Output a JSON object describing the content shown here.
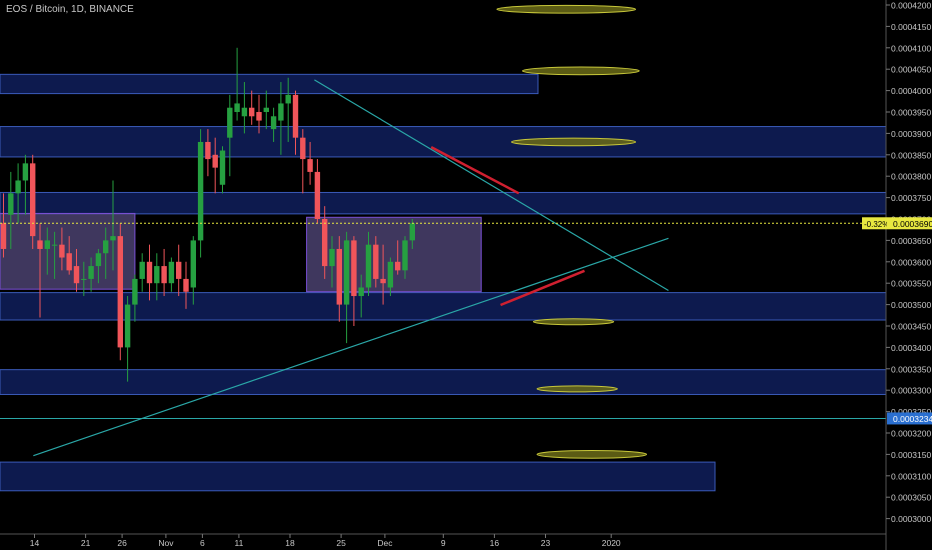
{
  "header": {
    "symbol": "EOS / Bitcoin, 1D, BINANCE"
  },
  "colors": {
    "background": "#000000",
    "up": "#26a041",
    "down": "#f0555a",
    "zone_fill": "#0f1f5c",
    "zone_stroke": "#3a5ab8",
    "range_fill": "#5a4f86",
    "range_stroke": "#7a4fd6",
    "ellipse_fill": "#6b6b18",
    "ellipse_stroke": "#c8c83a",
    "trendline": "#2aa7a7",
    "marker": "#d02030",
    "price_line": "#e8e840",
    "axis_text": "#c8c8c8"
  },
  "chart_data": {
    "type": "candlestick",
    "title": "EOS / Bitcoin, 1D, BINANCE",
    "y_axis": {
      "position": "right",
      "range": [
        0.000297,
        0.000421
      ],
      "ticks": [
        "0.0004200",
        "0.0004150",
        "0.0004100",
        "0.0004050",
        "0.0004000",
        "0.0003950",
        "0.0003900",
        "0.0003850",
        "0.0003800",
        "0.0003750",
        "0.0003700",
        "0.0003650",
        "0.0003600",
        "0.0003550",
        "0.0003500",
        "0.0003450",
        "0.0003400",
        "0.0003350",
        "0.0003300",
        "0.0003250",
        "0.0003200",
        "0.0003150",
        "0.0003100",
        "0.0003050",
        "0.0003000"
      ]
    },
    "x_axis": {
      "ticks": [
        {
          "label": "14",
          "day": 0
        },
        {
          "label": "21",
          "day": 7
        },
        {
          "label": "26",
          "day": 12
        },
        {
          "label": "Nov",
          "day": 18
        },
        {
          "label": "6",
          "day": 23
        },
        {
          "label": "11",
          "day": 28
        },
        {
          "label": "18",
          "day": 35
        },
        {
          "label": "25",
          "day": 42
        },
        {
          "label": "Dec",
          "day": 48
        },
        {
          "label": "9",
          "day": 56
        },
        {
          "label": "16",
          "day": 63
        },
        {
          "label": "23",
          "day": 70
        },
        {
          "label": "2020",
          "day": 79
        }
      ]
    },
    "candles": [
      {
        "o": 0.000369,
        "h": 0.000376,
        "l": 0.000361,
        "c": 0.000363
      },
      {
        "o": 0.000371,
        "h": 0.000381,
        "l": 0.000363,
        "c": 0.000376
      },
      {
        "o": 0.000376,
        "h": 0.000383,
        "l": 0.000369,
        "c": 0.000379
      },
      {
        "o": 0.000379,
        "h": 0.000385,
        "l": 0.000371,
        "c": 0.000383
      },
      {
        "o": 0.000383,
        "h": 0.000385,
        "l": 0.000363,
        "c": 0.000366
      },
      {
        "o": 0.000365,
        "h": 0.000369,
        "l": 0.000347,
        "c": 0.000363
      },
      {
        "o": 0.000363,
        "h": 0.000368,
        "l": 0.000357,
        "c": 0.000365
      },
      {
        "o": 0.000364,
        "h": 0.000367,
        "l": 0.000356,
        "c": 0.000364
      },
      {
        "o": 0.000364,
        "h": 0.000368,
        "l": 0.000358,
        "c": 0.000361
      },
      {
        "o": 0.000362,
        "h": 0.000366,
        "l": 0.000357,
        "c": 0.000358
      },
      {
        "o": 0.000359,
        "h": 0.000363,
        "l": 0.000353,
        "c": 0.000355
      },
      {
        "o": 0.000356,
        "h": 0.00036,
        "l": 0.000352,
        "c": 0.000356
      },
      {
        "o": 0.000356,
        "h": 0.000361,
        "l": 0.000353,
        "c": 0.000359
      },
      {
        "o": 0.000359,
        "h": 0.000363,
        "l": 0.000355,
        "c": 0.000362
      },
      {
        "o": 0.000362,
        "h": 0.000368,
        "l": 0.000356,
        "c": 0.000365
      },
      {
        "o": 0.000365,
        "h": 0.000379,
        "l": 0.000358,
        "c": 0.000366
      },
      {
        "o": 0.000366,
        "h": 0.000369,
        "l": 0.000337,
        "c": 0.00034
      },
      {
        "o": 0.00034,
        "h": 0.000352,
        "l": 0.000332,
        "c": 0.00035
      },
      {
        "o": 0.00035,
        "h": 0.000357,
        "l": 0.000346,
        "c": 0.000356
      },
      {
        "o": 0.000356,
        "h": 0.000362,
        "l": 0.000353,
        "c": 0.00036
      },
      {
        "o": 0.00036,
        "h": 0.000364,
        "l": 0.000351,
        "c": 0.000355
      },
      {
        "o": 0.000355,
        "h": 0.000362,
        "l": 0.000351,
        "c": 0.000359
      },
      {
        "o": 0.000359,
        "h": 0.000363,
        "l": 0.000352,
        "c": 0.000355
      },
      {
        "o": 0.000355,
        "h": 0.000361,
        "l": 0.000353,
        "c": 0.00036
      },
      {
        "o": 0.00036,
        "h": 0.000364,
        "l": 0.000352,
        "c": 0.000356
      },
      {
        "o": 0.000356,
        "h": 0.00036,
        "l": 0.000349,
        "c": 0.000353
      },
      {
        "o": 0.000354,
        "h": 0.000366,
        "l": 0.00035,
        "c": 0.000365
      },
      {
        "o": 0.000365,
        "h": 0.000391,
        "l": 0.000361,
        "c": 0.000388
      },
      {
        "o": 0.000388,
        "h": 0.000391,
        "l": 0.00038,
        "c": 0.000384
      },
      {
        "o": 0.000385,
        "h": 0.000389,
        "l": 0.000376,
        "c": 0.000382
      },
      {
        "o": 0.000378,
        "h": 0.000387,
        "l": 0.000376,
        "c": 0.000386
      },
      {
        "o": 0.000389,
        "h": 0.000399,
        "l": 0.00038,
        "c": 0.000396
      },
      {
        "o": 0.000395,
        "h": 0.00041,
        "l": 0.000393,
        "c": 0.000397
      },
      {
        "o": 0.000394,
        "h": 0.000402,
        "l": 0.00039,
        "c": 0.000396
      },
      {
        "o": 0.000396,
        "h": 0.0004,
        "l": 0.000392,
        "c": 0.000394
      },
      {
        "o": 0.000395,
        "h": 0.000399,
        "l": 0.00039,
        "c": 0.000393
      },
      {
        "o": 0.000395,
        "h": 0.0004,
        "l": 0.000391,
        "c": 0.000396
      },
      {
        "o": 0.000391,
        "h": 0.000396,
        "l": 0.000388,
        "c": 0.000394
      },
      {
        "o": 0.000393,
        "h": 0.000402,
        "l": 0.000385,
        "c": 0.000397
      },
      {
        "o": 0.000397,
        "h": 0.000403,
        "l": 0.000388,
        "c": 0.000399
      },
      {
        "o": 0.000399,
        "h": 0.0004,
        "l": 0.000385,
        "c": 0.000389
      },
      {
        "o": 0.000389,
        "h": 0.000391,
        "l": 0.000376,
        "c": 0.000384
      },
      {
        "o": 0.000384,
        "h": 0.000388,
        "l": 0.000378,
        "c": 0.000381
      },
      {
        "o": 0.000381,
        "h": 0.000384,
        "l": 0.000369,
        "c": 0.00037
      },
      {
        "o": 0.00037,
        "h": 0.000373,
        "l": 0.000356,
        "c": 0.000359
      },
      {
        "o": 0.000359,
        "h": 0.000366,
        "l": 0.000354,
        "c": 0.000363
      },
      {
        "o": 0.000363,
        "h": 0.000366,
        "l": 0.000346,
        "c": 0.00035
      },
      {
        "o": 0.00035,
        "h": 0.000367,
        "l": 0.000341,
        "c": 0.000365
      },
      {
        "o": 0.000365,
        "h": 0.000366,
        "l": 0.000345,
        "c": 0.000352
      },
      {
        "o": 0.000352,
        "h": 0.000357,
        "l": 0.000347,
        "c": 0.000354
      },
      {
        "o": 0.000354,
        "h": 0.000367,
        "l": 0.000352,
        "c": 0.000364
      },
      {
        "o": 0.000364,
        "h": 0.000366,
        "l": 0.000354,
        "c": 0.000356
      },
      {
        "o": 0.000356,
        "h": 0.000364,
        "l": 0.00035,
        "c": 0.000355
      },
      {
        "o": 0.000354,
        "h": 0.000361,
        "l": 0.000352,
        "c": 0.00036
      },
      {
        "o": 0.00036,
        "h": 0.000365,
        "l": 0.000357,
        "c": 0.000358
      },
      {
        "o": 0.000358,
        "h": 0.000366,
        "l": 0.000356,
        "c": 0.000365
      },
      {
        "o": 0.000365,
        "h": 0.00037,
        "l": 0.000363,
        "c": 0.000369
      }
    ],
    "current_price": {
      "label": "0.0003690",
      "change": "-0.32%",
      "value": 0.000369
    },
    "marked_level": {
      "label": "0.0003234",
      "value": 0.0003234
    },
    "zones": [
      {
        "y1": 0.0004038,
        "y2": 0.0003993
      },
      {
        "y1": 0.0003916,
        "y2": 0.0003845
      },
      {
        "y1": 0.0003762,
        "y2": 0.0003712
      },
      {
        "y1": 0.0003528,
        "y2": 0.0003464
      },
      {
        "y1": 0.0003348,
        "y2": 0.000329
      },
      {
        "y1": 0.0003132,
        "y2": 0.0003065
      }
    ],
    "range_boxes": [
      {
        "day_start": 0,
        "day_end": 13,
        "y1": 0.0003713,
        "y2": 0.0003536
      },
      {
        "day_start": 42,
        "day_end": 54,
        "y1": 0.0003704,
        "y2": 0.000353
      }
    ],
    "ellipses": [
      {
        "day": 72.5,
        "price": 0.000419,
        "day_rx": 9.5,
        "price_ry": 9e-07
      },
      {
        "day": 74.5,
        "price": 0.0004046,
        "day_rx": 8.0,
        "price_ry": 9e-07
      },
      {
        "day": 73.5,
        "price": 0.000388,
        "day_rx": 8.5,
        "price_ry": 9e-07
      },
      {
        "day": 73.5,
        "price": 0.000346,
        "day_rx": 5.5,
        "price_ry": 7e-07
      },
      {
        "day": 74.0,
        "price": 0.0003303,
        "day_rx": 5.5,
        "price_ry": 7e-07
      },
      {
        "day": 76.0,
        "price": 0.000315,
        "day_rx": 7.5,
        "price_ry": 9e-07
      }
    ],
    "trendlines": [
      {
        "d1": 38.0,
        "p1": 0.0004025,
        "d2": 86.5,
        "p2": 0.0003533
      },
      {
        "d1": -0.5,
        "p1": 0.0003147,
        "d2": 86.5,
        "p2": 0.0003655
      }
    ],
    "markers": [
      {
        "d1": 54,
        "p1": 0.0003868,
        "d2": 66,
        "p2": 0.000376
      },
      {
        "d1": 63.5,
        "p1": 0.0003499,
        "d2": 75,
        "p2": 0.0003579
      }
    ]
  }
}
